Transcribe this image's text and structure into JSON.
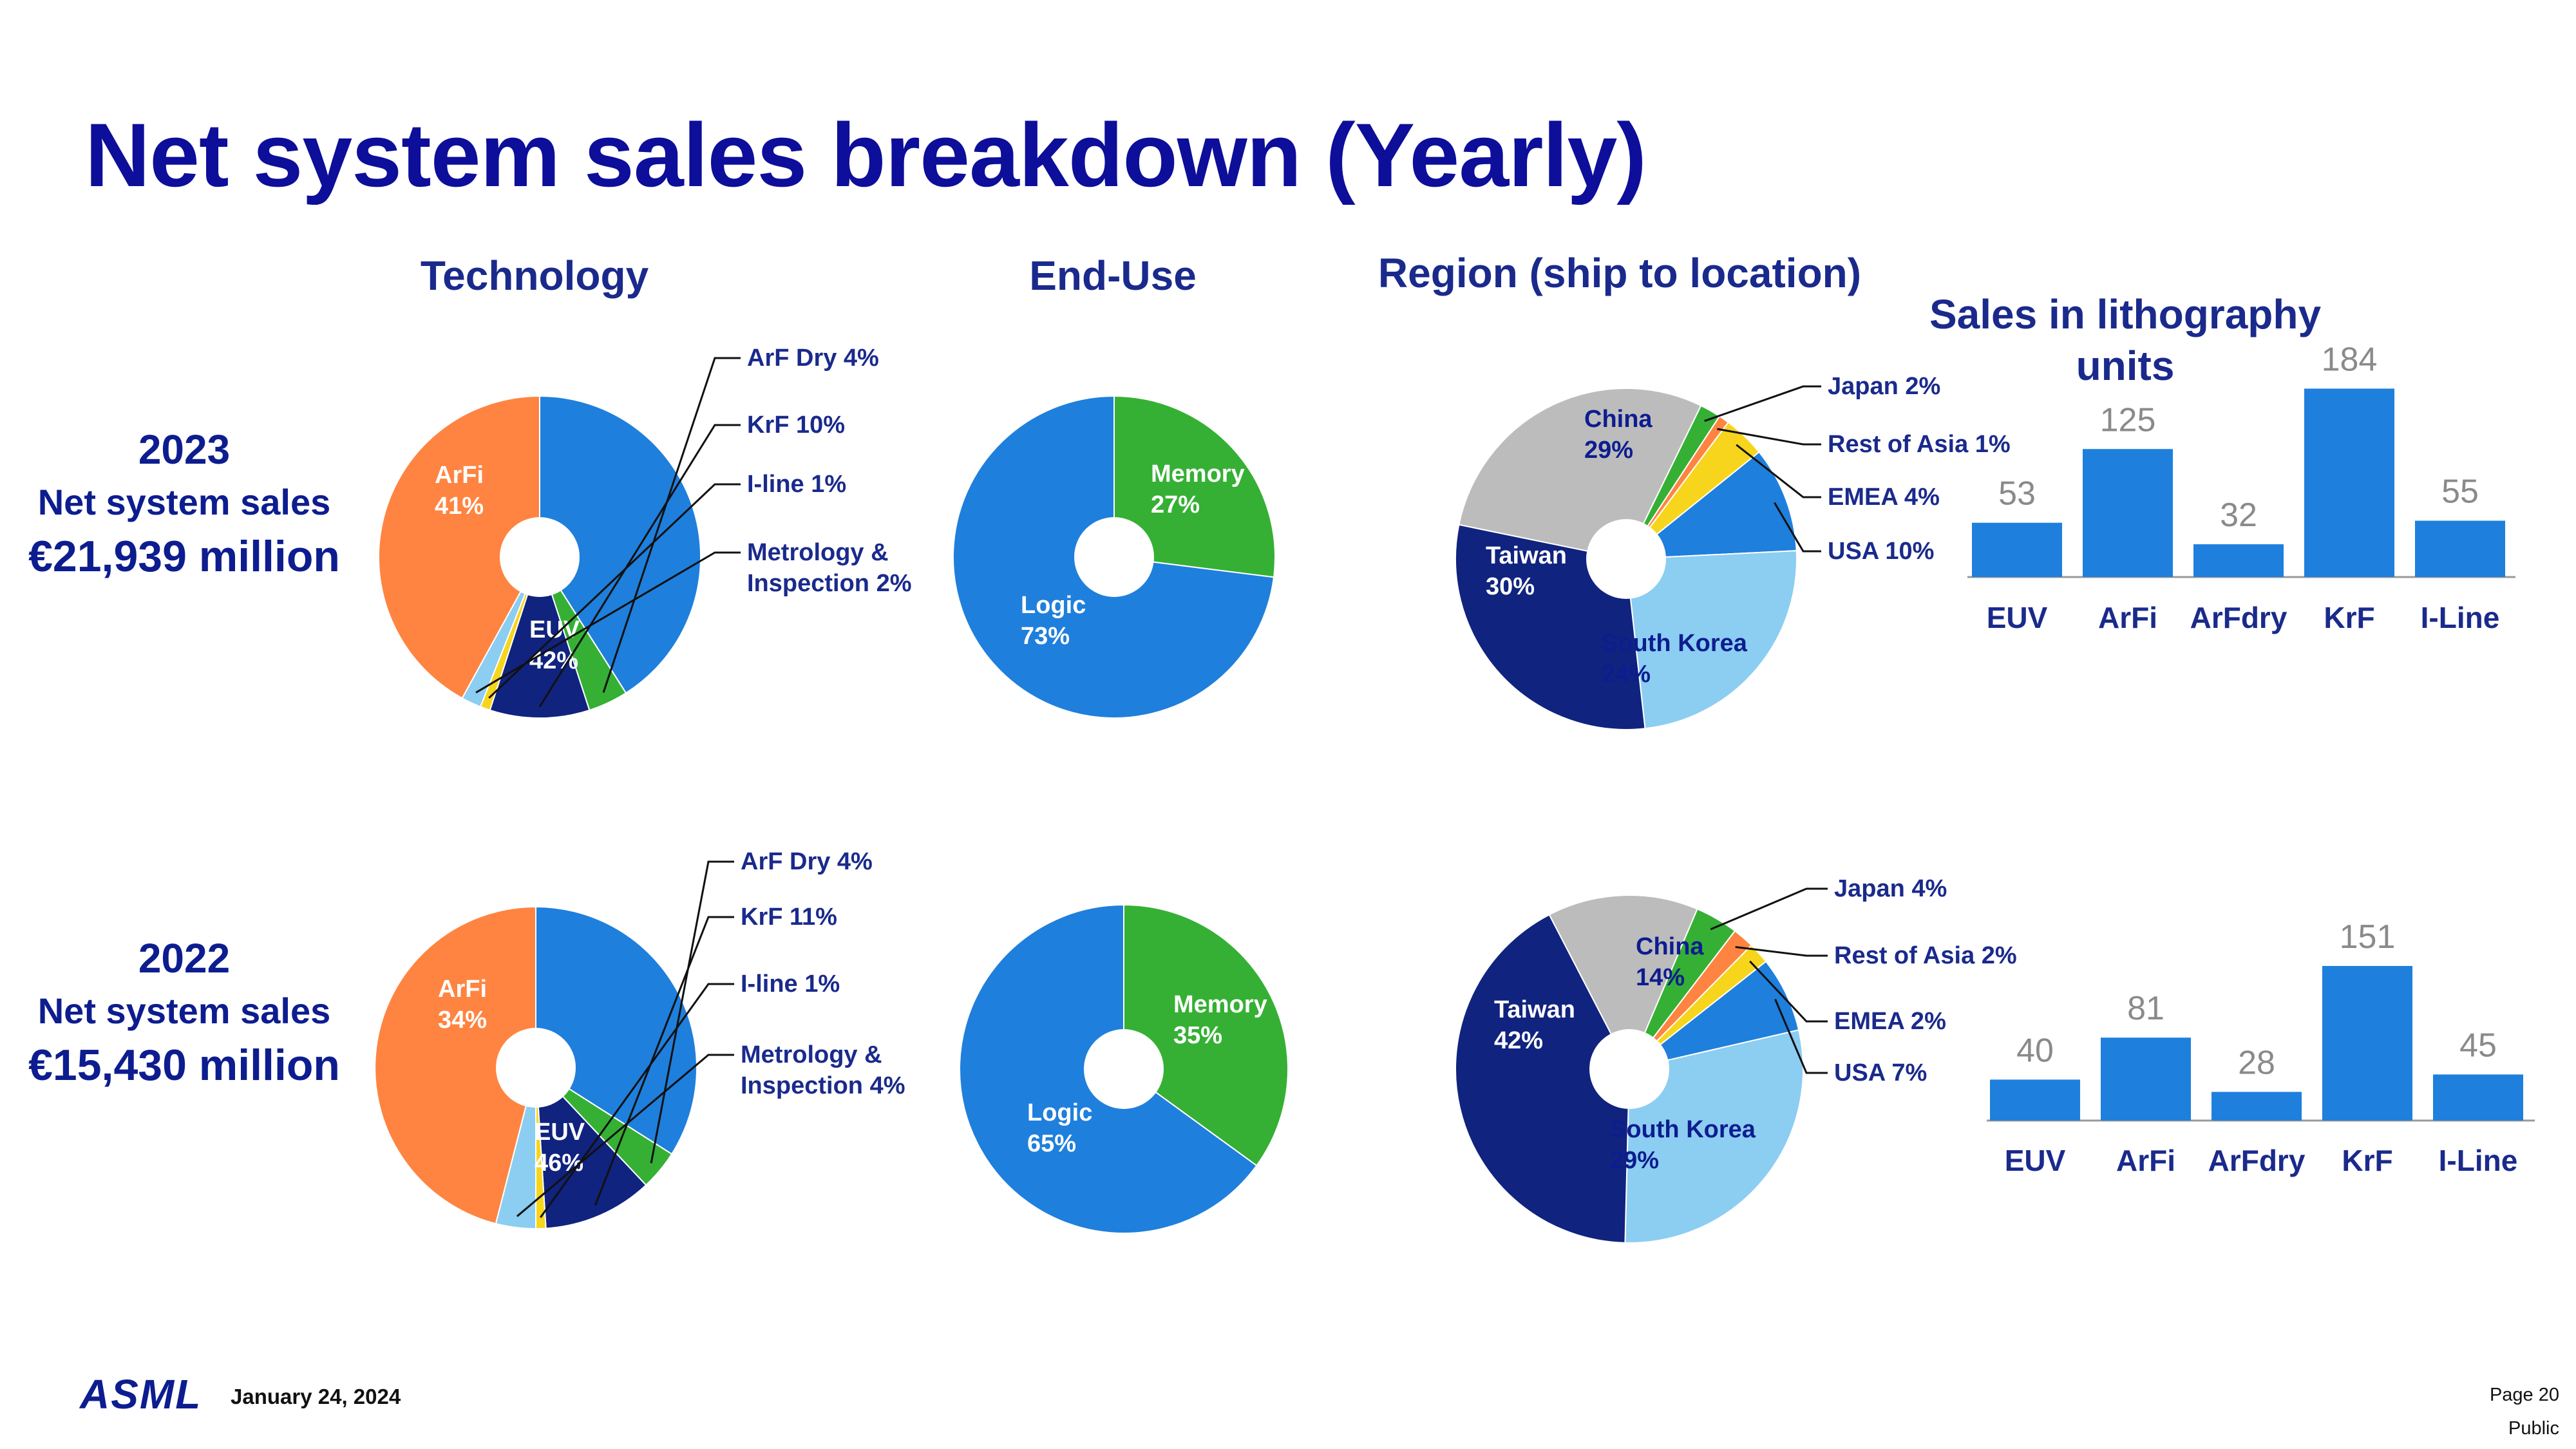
{
  "title": "Net system sales breakdown (Yearly)",
  "column_headers": {
    "technology": "Technology",
    "end_use": "End-Use",
    "region": "Region (ship to location)",
    "units_line1": "Sales in lithography",
    "units_line2": "units"
  },
  "rows": [
    {
      "year": "2023",
      "label": "Net system sales",
      "amount": "€21,939 million"
    },
    {
      "year": "2022",
      "label": "Net system sales",
      "amount": "€15,430 million"
    }
  ],
  "footer": {
    "logo": "ASML",
    "date": "January 24, 2024",
    "page": "Page 20",
    "classification": "Public"
  },
  "colors": {
    "title": "#0d0e9a",
    "label": "#0d1d8f",
    "bar": "#1f7fdc",
    "bar_value": "#8a8a8a",
    "ArFi": "#1f7fdc",
    "ArF Dry": "#35b034",
    "KrF": "#10237f",
    "I-line": "#f6d51c",
    "Metrology": "#8ccdf2",
    "EUV": "#ff8441",
    "Memory": "#35b034",
    "Logic": "#1f7fdc",
    "China": "#bcbcbc",
    "Japan": "#35b034",
    "Rest of Asia": "#ff8441",
    "EMEA": "#f6d51c",
    "USA": "#1f7fdc",
    "South Korea": "#8ccdf2",
    "Taiwan": "#10237f"
  },
  "chart_data": [
    {
      "type": "pie",
      "id": "tech2023",
      "title": "Technology",
      "year": "2023",
      "slices": [
        {
          "name": "ArFi",
          "label": "ArFi",
          "value": 41,
          "pct": "41%",
          "color": "#1f7fdc",
          "inside": true,
          "text_color": "#ffffff"
        },
        {
          "name": "ArF Dry",
          "label": "ArF Dry 4%",
          "value": 4,
          "color": "#35b034",
          "callout": true
        },
        {
          "name": "KrF",
          "label": "KrF 10%",
          "value": 10,
          "color": "#10237f",
          "callout": true
        },
        {
          "name": "I-line",
          "label": "I-line 1%",
          "value": 1,
          "color": "#f6d51c",
          "callout": true
        },
        {
          "name": "Metrology & Inspection",
          "label": "Metrology &",
          "label2": "Inspection 2%",
          "value": 2,
          "color": "#8ccdf2",
          "callout": true
        },
        {
          "name": "EUV",
          "label": "EUV",
          "value": 42,
          "pct": "42%",
          "color": "#ff8441",
          "inside": true,
          "text_color": "#ffffff"
        }
      ]
    },
    {
      "type": "pie",
      "id": "enduse2023",
      "title": "End-Use",
      "year": "2023",
      "slices": [
        {
          "name": "Memory",
          "label": "Memory",
          "value": 27,
          "pct": "27%",
          "color": "#35b034",
          "inside": true,
          "text_color": "#ffffff"
        },
        {
          "name": "Logic",
          "label": "Logic",
          "value": 73,
          "pct": "73%",
          "color": "#1f7fdc",
          "inside": true,
          "text_color": "#ffffff"
        }
      ]
    },
    {
      "type": "pie",
      "id": "region2023",
      "title": "Region (ship to location)",
      "year": "2023",
      "slices": [
        {
          "name": "Japan",
          "label": "Japan 2%",
          "value": 2,
          "color": "#35b034",
          "callout": true
        },
        {
          "name": "Rest of Asia",
          "label": "Rest of Asia 1%",
          "value": 1,
          "color": "#ff8441",
          "callout": true
        },
        {
          "name": "EMEA",
          "label": "EMEA 4%",
          "value": 4,
          "color": "#f6d51c",
          "callout": true
        },
        {
          "name": "USA",
          "label": "USA 10%",
          "value": 10,
          "color": "#1f7fdc",
          "callout": true
        },
        {
          "name": "South Korea",
          "label": "South Korea",
          "value": 24,
          "pct": "24%",
          "color": "#8ccdf2",
          "inside": true,
          "text_color": "#0d1d8f"
        },
        {
          "name": "Taiwan",
          "label": "Taiwan",
          "value": 30,
          "pct": "30%",
          "color": "#10237f",
          "inside": true,
          "text_color": "#ffffff"
        },
        {
          "name": "China",
          "label": "China",
          "value": 29,
          "pct": "29%",
          "color": "#bcbcbc",
          "inside": true,
          "text_color": "#0d1d8f"
        }
      ]
    },
    {
      "type": "bar",
      "id": "units2023",
      "title": "Sales in lithography units",
      "year": "2023",
      "categories": [
        "EUV",
        "ArFi",
        "ArFdry",
        "KrF",
        "I-Line"
      ],
      "values": [
        53,
        125,
        32,
        184,
        55
      ]
    },
    {
      "type": "pie",
      "id": "tech2022",
      "title": "Technology",
      "year": "2022",
      "slices": [
        {
          "name": "ArFi",
          "label": "ArFi",
          "value": 34,
          "pct": "34%",
          "color": "#1f7fdc",
          "inside": true,
          "text_color": "#ffffff"
        },
        {
          "name": "ArF Dry",
          "label": "ArF Dry 4%",
          "value": 4,
          "color": "#35b034",
          "callout": true
        },
        {
          "name": "KrF",
          "label": "KrF 11%",
          "value": 11,
          "color": "#10237f",
          "callout": true
        },
        {
          "name": "I-line",
          "label": "I-line 1%",
          "value": 1,
          "color": "#f6d51c",
          "callout": true
        },
        {
          "name": "Metrology & Inspection",
          "label": "Metrology &",
          "label2": "Inspection 4%",
          "value": 4,
          "color": "#8ccdf2",
          "callout": true
        },
        {
          "name": "EUV",
          "label": "EUV",
          "value": 46,
          "pct": "46%",
          "color": "#ff8441",
          "inside": true,
          "text_color": "#ffffff"
        }
      ]
    },
    {
      "type": "pie",
      "id": "enduse2022",
      "title": "End-Use",
      "year": "2022",
      "slices": [
        {
          "name": "Memory",
          "label": "Memory",
          "value": 35,
          "pct": "35%",
          "color": "#35b034",
          "inside": true,
          "text_color": "#ffffff"
        },
        {
          "name": "Logic",
          "label": "Logic",
          "value": 65,
          "pct": "65%",
          "color": "#1f7fdc",
          "inside": true,
          "text_color": "#ffffff"
        }
      ]
    },
    {
      "type": "pie",
      "id": "region2022",
      "title": "Region (ship to location)",
      "year": "2022",
      "slices": [
        {
          "name": "Japan",
          "label": "Japan 4%",
          "value": 4,
          "color": "#35b034",
          "callout": true
        },
        {
          "name": "Rest of Asia",
          "label": "Rest of Asia 2%",
          "value": 2,
          "color": "#ff8441",
          "callout": true
        },
        {
          "name": "EMEA",
          "label": "EMEA 2%",
          "value": 2,
          "color": "#f6d51c",
          "callout": true
        },
        {
          "name": "USA",
          "label": "USA 7%",
          "value": 7,
          "color": "#1f7fdc",
          "callout": true
        },
        {
          "name": "South Korea",
          "label": "South Korea",
          "value": 29,
          "pct": "29%",
          "color": "#8ccdf2",
          "inside": true,
          "text_color": "#0d1d8f"
        },
        {
          "name": "Taiwan",
          "label": "Taiwan",
          "value": 42,
          "pct": "42%",
          "color": "#10237f",
          "inside": true,
          "text_color": "#ffffff"
        },
        {
          "name": "China",
          "label": "China",
          "value": 14,
          "pct": "14%",
          "color": "#bcbcbc",
          "inside": true,
          "text_color": "#0d1d8f"
        }
      ]
    },
    {
      "type": "bar",
      "id": "units2022",
      "title": "Sales in lithography units",
      "year": "2022",
      "categories": [
        "EUV",
        "ArFi",
        "ArFdry",
        "KrF",
        "I-Line"
      ],
      "values": [
        40,
        81,
        28,
        151,
        45
      ]
    }
  ]
}
